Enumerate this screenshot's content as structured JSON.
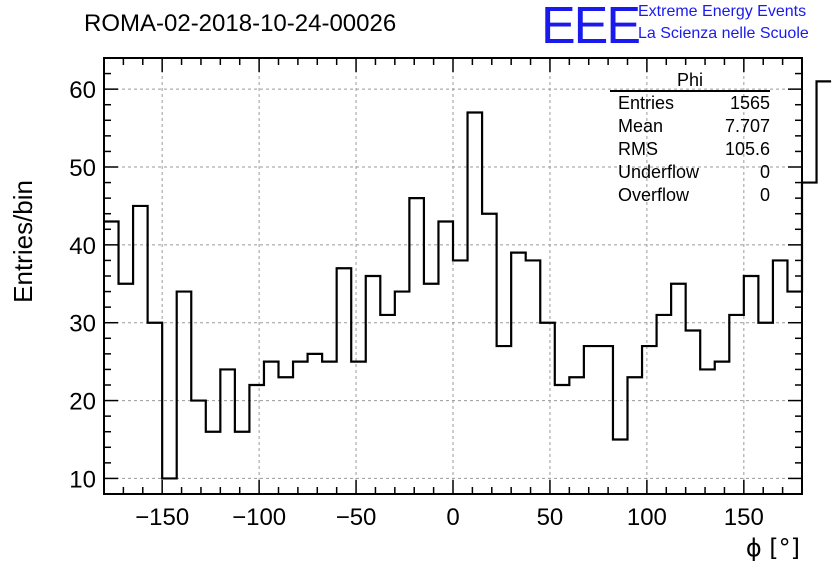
{
  "header": {
    "run_title": "ROMA-02-2018-10-24-00026",
    "logo_text": "EEE",
    "logo_line1": "Extreme Energy Events",
    "logo_line2": "La Scienza nelle Scuole"
  },
  "stats": {
    "title": "Phi",
    "rows": [
      {
        "label": "Entries",
        "value": "1565"
      },
      {
        "label": "Mean",
        "value": "7.707"
      },
      {
        "label": "RMS",
        "value": "105.6"
      },
      {
        "label": "Underflow",
        "value": "0"
      },
      {
        "label": "Overflow",
        "value": "0"
      }
    ]
  },
  "colors": {
    "logo": "#1a1aee",
    "line": "#000000",
    "grid": "#9a9a9a"
  },
  "chart_data": {
    "type": "bar",
    "histogram": "step",
    "xlabel": "ϕ [°]",
    "ylabel": "Entries/bin",
    "xlim": [
      -180,
      180
    ],
    "ylim": [
      8,
      64
    ],
    "grid": true,
    "bin_width": 7.5,
    "bin_edges_start": -180,
    "x_ticks": [
      -150,
      -100,
      -50,
      0,
      50,
      100,
      150
    ],
    "x_tick_labels": [
      "−150",
      "−100",
      "−50",
      "0",
      "50",
      "100",
      "150"
    ],
    "y_ticks": [
      10,
      20,
      30,
      40,
      50,
      60
    ],
    "y_tick_labels": [
      "10",
      "20",
      "30",
      "40",
      "50",
      "60"
    ],
    "values": [
      43,
      35,
      45,
      30,
      10,
      34,
      20,
      16,
      24,
      16,
      22,
      25,
      23,
      25,
      26,
      25,
      37,
      25,
      36,
      31,
      34,
      46,
      35,
      43,
      38,
      57,
      44,
      27,
      39,
      38,
      30,
      22,
      23,
      27,
      27,
      15,
      23,
      27,
      31,
      35,
      29,
      24,
      25,
      31,
      36,
      30,
      38,
      34,
      48,
      61
    ]
  }
}
